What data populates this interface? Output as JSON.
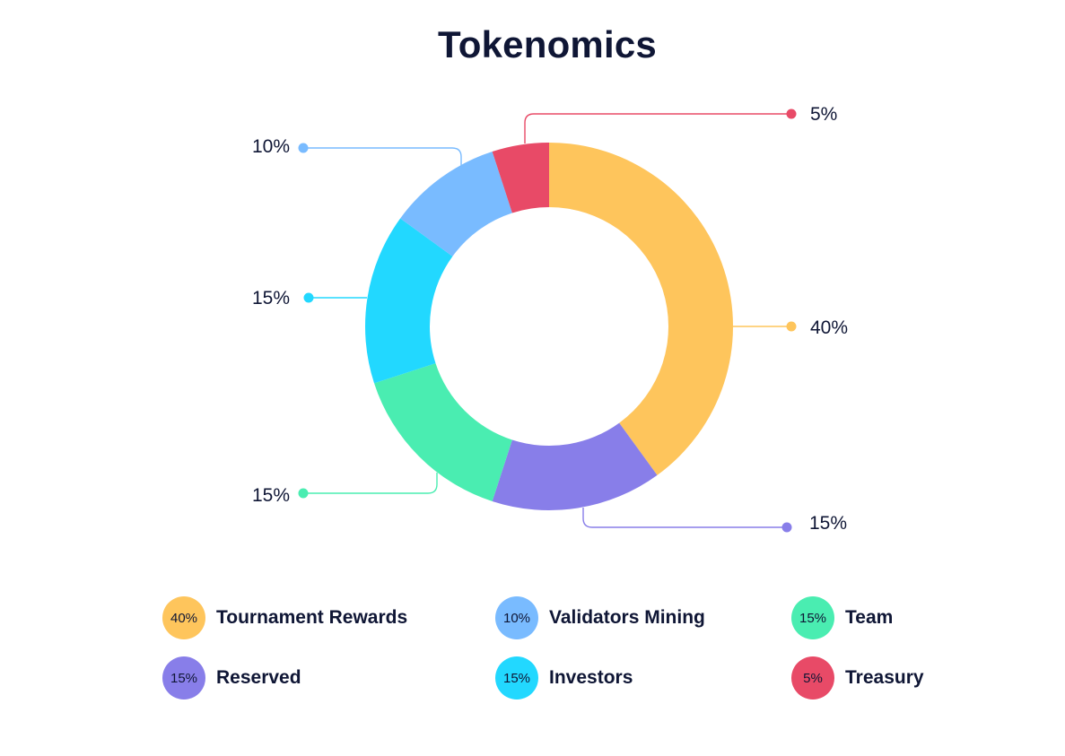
{
  "chart_data": {
    "type": "pie",
    "title": "Tokenomics",
    "categories": [
      "Tournament Rewards",
      "Reserved",
      "Team",
      "Investors",
      "Validators Mining",
      "Treasury"
    ],
    "values": [
      40,
      15,
      15,
      15,
      10,
      5
    ],
    "value_labels": [
      "40%",
      "15%",
      "15%",
      "15%",
      "10%",
      "5%"
    ],
    "colors": [
      "#fec55c",
      "#887ee9",
      "#4aedb1",
      "#22d8ff",
      "#79bbff",
      "#e84a67"
    ],
    "legend": [
      {
        "label": "Tournament Rewards",
        "value": "40%",
        "color": "#fec55c"
      },
      {
        "label": "Validators Mining",
        "value": "10%",
        "color": "#79bbff"
      },
      {
        "label": "Team",
        "value": "15%",
        "color": "#4aedb1"
      },
      {
        "label": "Reserved",
        "value": "15%",
        "color": "#887ee9"
      },
      {
        "label": "Investors",
        "value": "15%",
        "color": "#22d8ff"
      },
      {
        "label": "Treasury",
        "value": "5%",
        "color": "#e84a67"
      }
    ]
  }
}
